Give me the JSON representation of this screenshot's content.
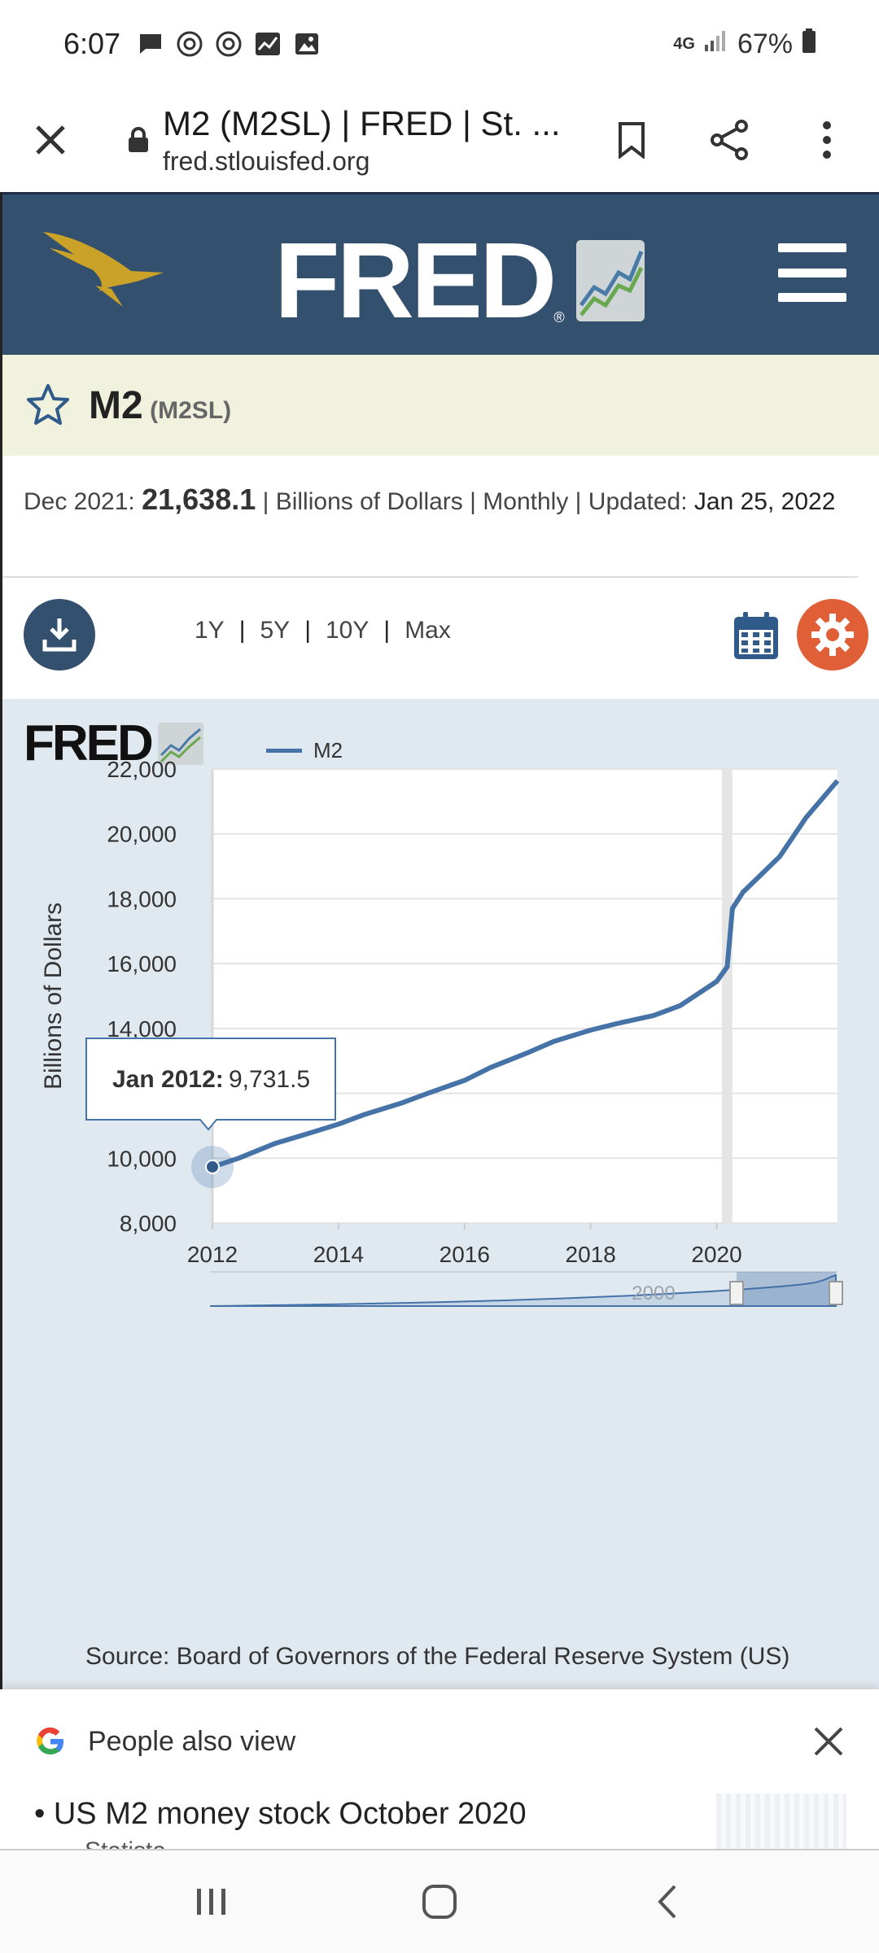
{
  "status_bar": {
    "time": "6:07",
    "network": "4G",
    "battery": "67%"
  },
  "browser": {
    "page_title": "M2 (M2SL) | FRED | St. ...",
    "domain": "fred.stlouisfed.org"
  },
  "header": {
    "logo_text": "FRED",
    "logo_mark": "®"
  },
  "series": {
    "title": "M2",
    "code": "(M2SL)",
    "date_label": "Dec 2021:",
    "value": "21,638.1",
    "sep1": " | ",
    "units": "Billions of Dollars",
    "sep2": " | ",
    "frequency": "Monthly",
    "sep3": " | ",
    "updated_label": "Updated:",
    "updated_date": "Jan 25, 2022"
  },
  "toolbar": {
    "ranges": [
      "1Y",
      "5Y",
      "10Y",
      "Max"
    ],
    "separator": "|"
  },
  "chart_data": {
    "type": "line",
    "logo_text": "FRED",
    "series": [
      {
        "name": "M2",
        "color": "#4572a7",
        "x": [
          "2012-01",
          "2012-06",
          "2013-01",
          "2013-06",
          "2014-01",
          "2014-06",
          "2015-01",
          "2015-06",
          "2016-01",
          "2016-06",
          "2017-01",
          "2017-06",
          "2018-01",
          "2018-06",
          "2019-01",
          "2019-06",
          "2020-01",
          "2020-03",
          "2020-04",
          "2020-06",
          "2021-01",
          "2021-06",
          "2021-12"
        ],
        "values": [
          9731.5,
          10000,
          10460,
          10700,
          11050,
          11350,
          11700,
          12000,
          12400,
          12800,
          13250,
          13600,
          13950,
          14150,
          14400,
          14700,
          15450,
          15900,
          17700,
          18200,
          19300,
          20500,
          21638.1
        ]
      }
    ],
    "ylabel": "Billions of Dollars",
    "ylim": [
      8000,
      22000
    ],
    "yticks": [
      "8,000",
      "10,000",
      "14,000",
      "16,000",
      "18,000",
      "20,000",
      "22,000"
    ],
    "xticks": [
      "2012",
      "2014",
      "2016",
      "2018",
      "2020"
    ],
    "xlim": [
      "2012-01",
      "2021-12"
    ],
    "recession_band": [
      "2020-02",
      "2020-04"
    ],
    "tooltip": {
      "label": "Jan 2012:",
      "value": "9,731.5"
    },
    "navigator_label": "2000",
    "source": "Source: Board of Governors of the Federal Reserve System (US)"
  },
  "people_also_view": {
    "heading": "People also view",
    "item": "• US M2 money stock October 2020",
    "item_source": "Statista"
  }
}
